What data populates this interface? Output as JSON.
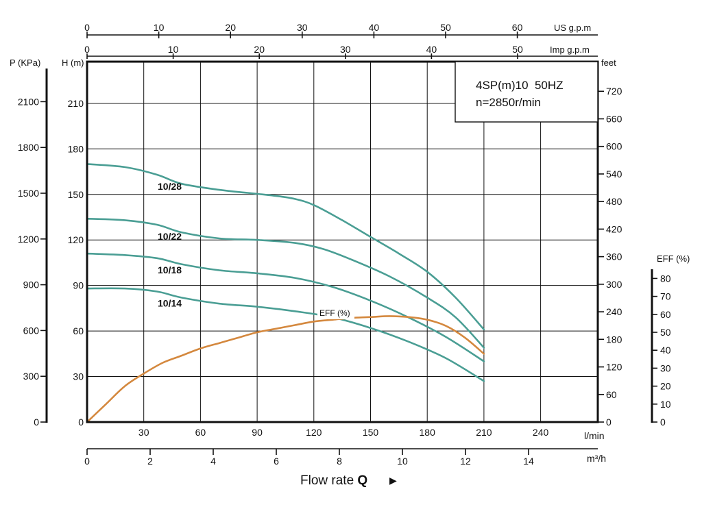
{
  "chart_data": {
    "type": "line",
    "info_box": {
      "line1": "4SP(m)10  50HZ",
      "line2": "n=2850r/min"
    },
    "x_axis": {
      "label": "l/min",
      "ticks": [
        30,
        60,
        90,
        120,
        150,
        180,
        210,
        240
      ],
      "range": [
        0,
        270
      ]
    },
    "x_axis_m3h": {
      "unit": "m³/h",
      "ticks": [
        0,
        2,
        4,
        6,
        8,
        10,
        12,
        14
      ]
    },
    "x_axis_us_gpm": {
      "unit": "US g.p.m",
      "ticks": [
        0,
        10,
        20,
        30,
        40,
        50,
        60
      ]
    },
    "x_axis_imp_gpm": {
      "unit": "Imp g.p.m",
      "ticks": [
        0,
        10,
        20,
        30,
        40,
        50
      ]
    },
    "y_axis_head_m": {
      "label": "H (m)",
      "ticks": [
        0,
        30,
        60,
        90,
        120,
        150,
        180,
        210
      ],
      "range": [
        0,
        237
      ]
    },
    "y_axis_pressure_kpa": {
      "label": "P (KPa)",
      "ticks": [
        0,
        300,
        600,
        900,
        1200,
        1500,
        1800,
        2100
      ]
    },
    "y_axis_feet": {
      "label": "feet",
      "ticks": [
        0,
        60,
        120,
        180,
        240,
        300,
        360,
        420,
        480,
        540,
        600,
        660,
        720
      ]
    },
    "y_axis_eff": {
      "label": "EFF (%)",
      "ticks": [
        0,
        10,
        20,
        30,
        40,
        50,
        60,
        70,
        80
      ]
    },
    "flow_label": {
      "text": "Flow rate ",
      "bold": "Q",
      "arrow": "▶"
    },
    "series": [
      {
        "name": "10/28",
        "axis": "head",
        "color": "#4a9e94",
        "points": [
          [
            0,
            170
          ],
          [
            20,
            168
          ],
          [
            37,
            163
          ],
          [
            50,
            157
          ],
          [
            70,
            153
          ],
          [
            85,
            151
          ],
          [
            100,
            149
          ],
          [
            110,
            147
          ],
          [
            120,
            143
          ],
          [
            135,
            133
          ],
          [
            150,
            122
          ],
          [
            165,
            111
          ],
          [
            180,
            99
          ],
          [
            195,
            82
          ],
          [
            210,
            61
          ]
        ]
      },
      {
        "name": "10/22",
        "axis": "head",
        "color": "#4a9e94",
        "points": [
          [
            0,
            134
          ],
          [
            20,
            133
          ],
          [
            37,
            130
          ],
          [
            50,
            125
          ],
          [
            70,
            121
          ],
          [
            90,
            120
          ],
          [
            110,
            118
          ],
          [
            125,
            114
          ],
          [
            140,
            107
          ],
          [
            160,
            96
          ],
          [
            180,
            82
          ],
          [
            195,
            69
          ],
          [
            210,
            49
          ]
        ]
      },
      {
        "name": "10/18",
        "axis": "head",
        "color": "#4a9e94",
        "points": [
          [
            0,
            111
          ],
          [
            20,
            110
          ],
          [
            37,
            108
          ],
          [
            50,
            104
          ],
          [
            70,
            100
          ],
          [
            90,
            98
          ],
          [
            110,
            95
          ],
          [
            130,
            89
          ],
          [
            150,
            80
          ],
          [
            170,
            69
          ],
          [
            190,
            56
          ],
          [
            210,
            40
          ]
        ]
      },
      {
        "name": "10/14",
        "axis": "head",
        "color": "#4a9e94",
        "points": [
          [
            0,
            88
          ],
          [
            20,
            88
          ],
          [
            37,
            86
          ],
          [
            50,
            82
          ],
          [
            70,
            78
          ],
          [
            90,
            76
          ],
          [
            110,
            73
          ],
          [
            130,
            69
          ],
          [
            150,
            62
          ],
          [
            170,
            53
          ],
          [
            190,
            42
          ],
          [
            210,
            27
          ]
        ]
      },
      {
        "name": "EFF (%)",
        "axis": "eff",
        "color": "#d4883e",
        "points": [
          [
            0,
            0
          ],
          [
            10,
            10
          ],
          [
            20,
            20
          ],
          [
            30,
            27
          ],
          [
            40,
            33
          ],
          [
            50,
            37
          ],
          [
            60,
            41
          ],
          [
            70,
            44
          ],
          [
            80,
            47
          ],
          [
            90,
            50
          ],
          [
            100,
            52
          ],
          [
            110,
            54
          ],
          [
            120,
            56
          ],
          [
            130,
            57
          ],
          [
            140,
            58
          ],
          [
            150,
            58.5
          ],
          [
            160,
            59
          ],
          [
            170,
            58.5
          ],
          [
            180,
            57
          ],
          [
            190,
            53.5
          ],
          [
            200,
            47
          ],
          [
            210,
            38
          ]
        ]
      }
    ],
    "eff_label_text": "EFF (%)",
    "grid": true
  }
}
